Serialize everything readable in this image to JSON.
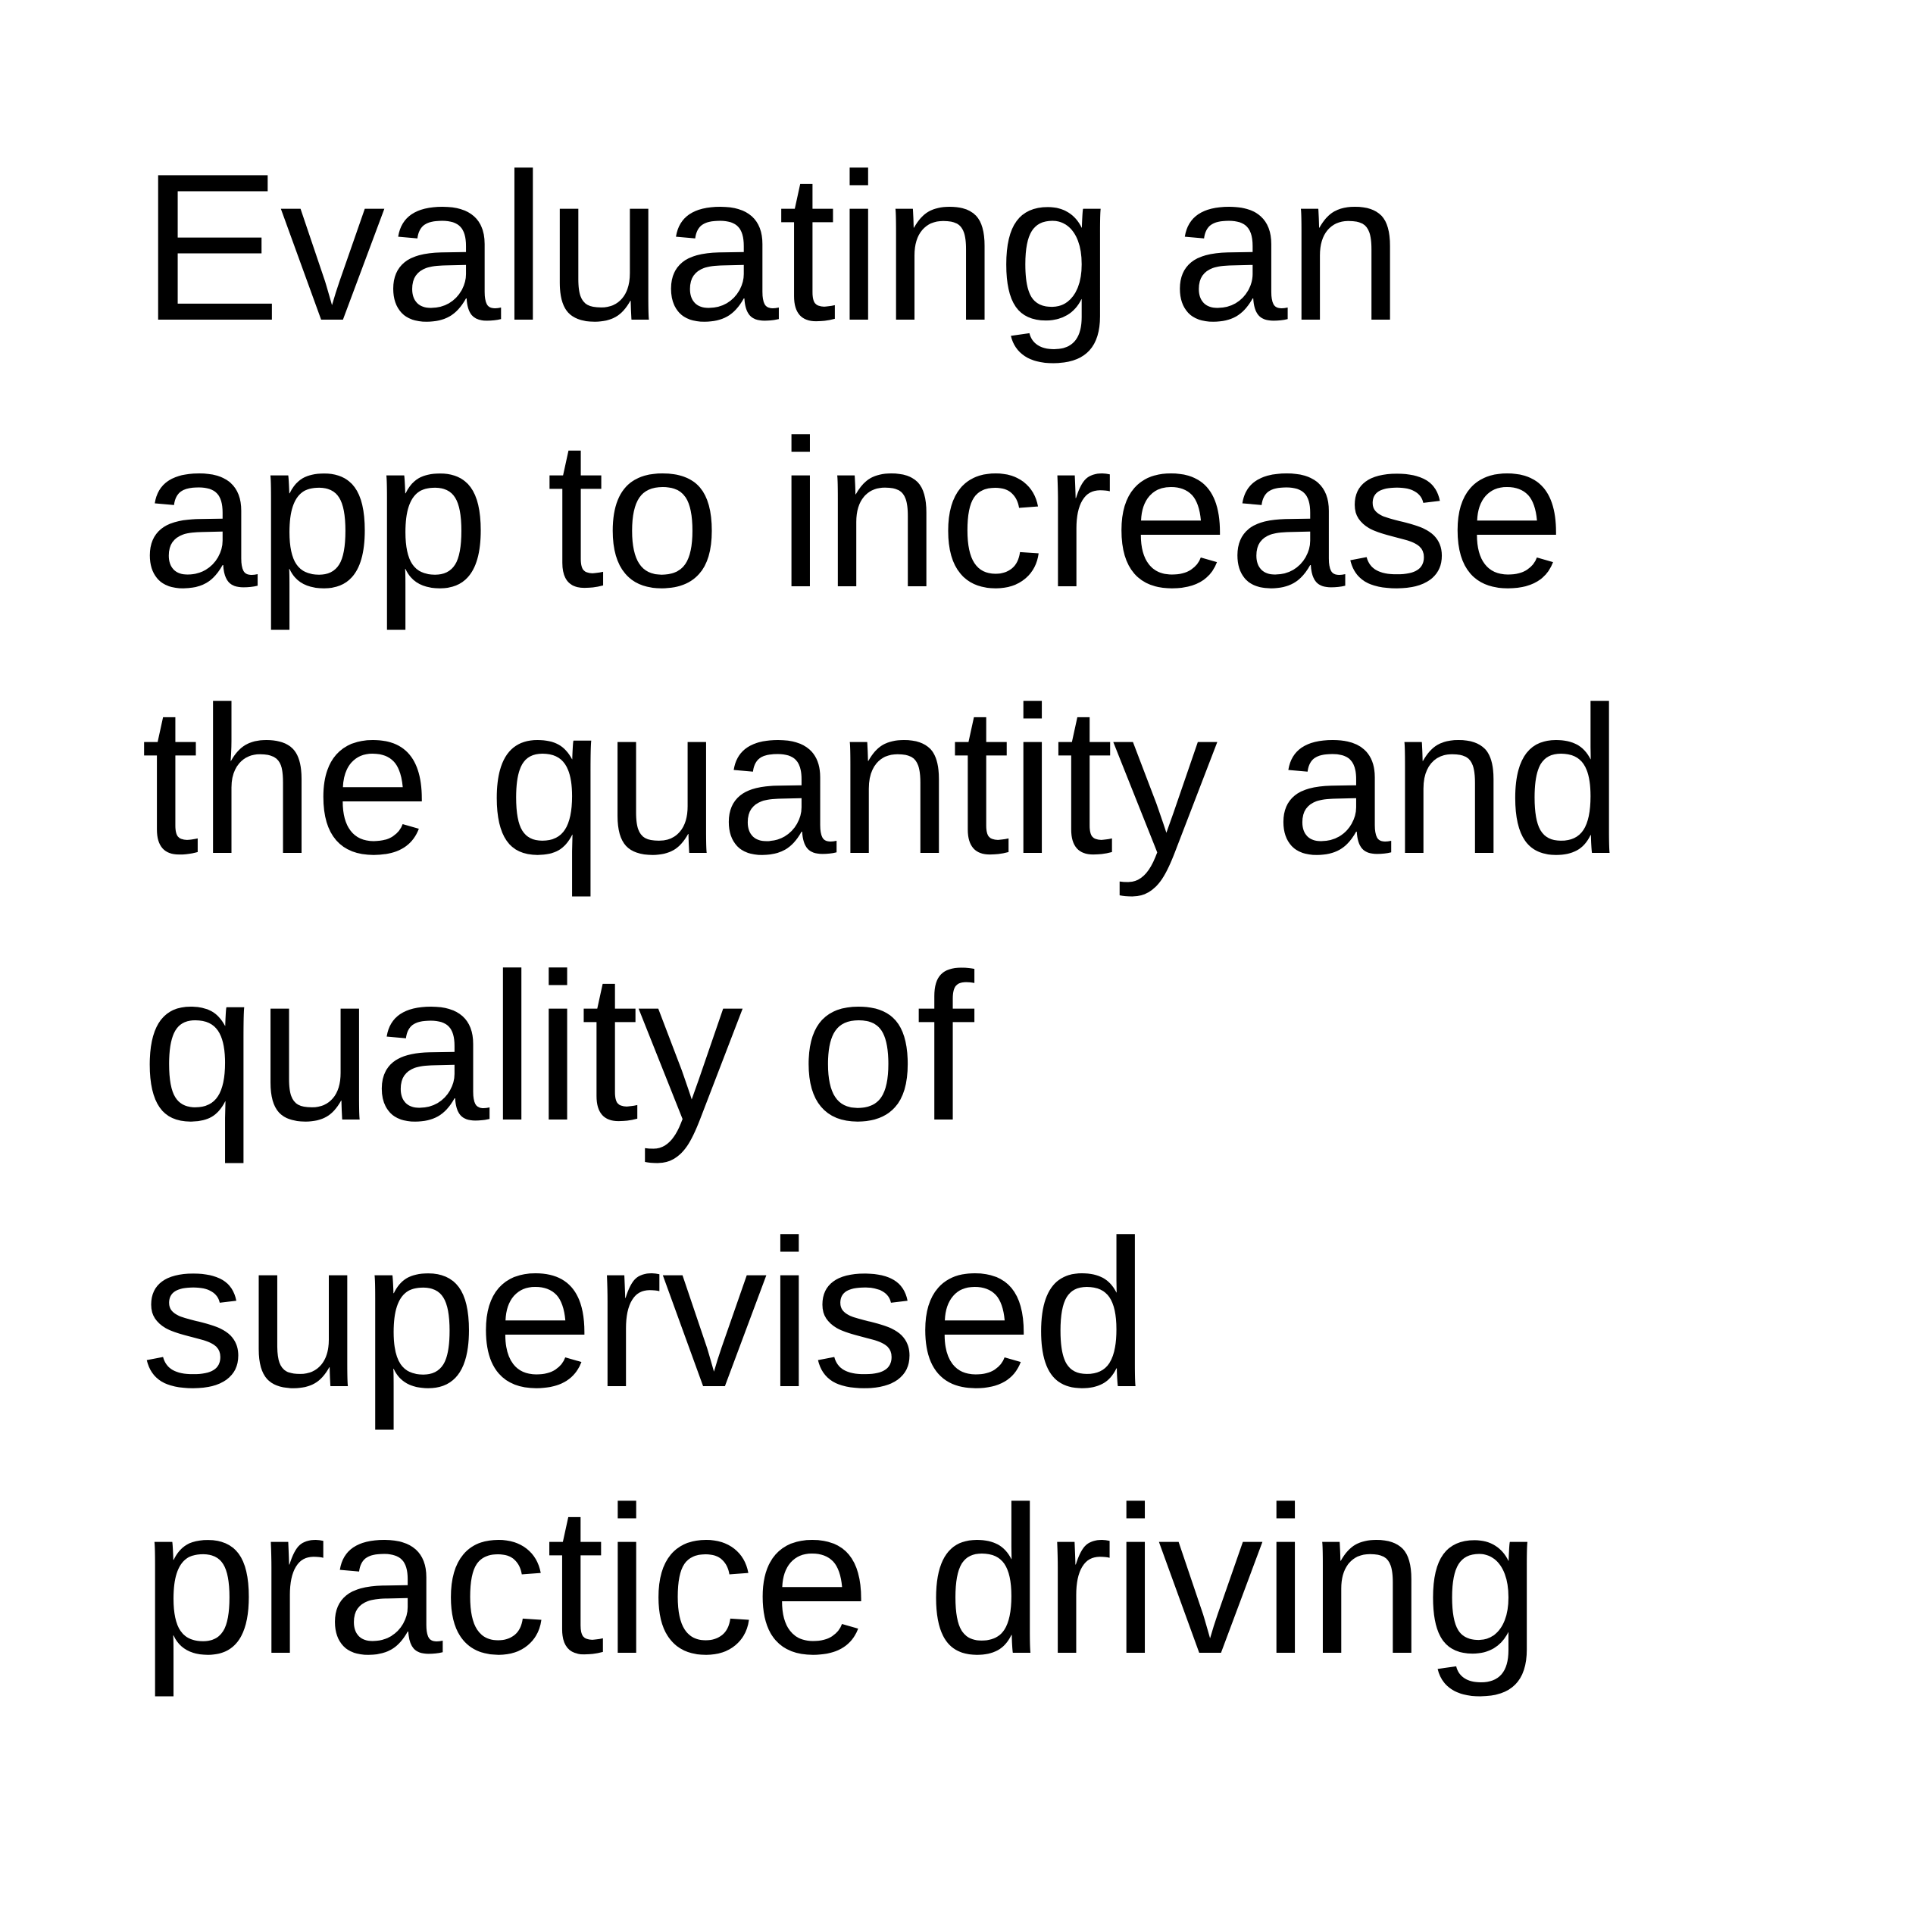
{
  "title": {
    "lines": [
      "Evaluating an",
      "app to increase",
      "the quantity and",
      "quality of",
      "supervised",
      "practice driving"
    ]
  },
  "colors": {
    "background": "#ffffff",
    "text": "#000000"
  }
}
